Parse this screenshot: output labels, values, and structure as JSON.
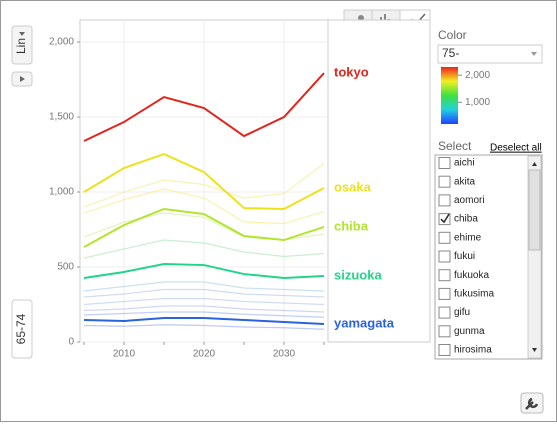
{
  "controls": {
    "scale": "Lin",
    "y_variable": "65-74"
  },
  "color_axis": {
    "label": "Color",
    "variable": "75-",
    "colorlim": [
      200,
      2300
    ],
    "ticks": [
      {
        "value": 2000,
        "label": "2,000"
      },
      {
        "value": 1000,
        "label": "1,000"
      }
    ]
  },
  "select": {
    "label": "Select",
    "action": "Deselect all",
    "items": [
      {
        "name": "aichi",
        "checked": false
      },
      {
        "name": "akita",
        "checked": false
      },
      {
        "name": "aomori",
        "checked": false
      },
      {
        "name": "chiba",
        "checked": true
      },
      {
        "name": "ehime",
        "checked": false
      },
      {
        "name": "fukui",
        "checked": false
      },
      {
        "name": "fukuoka",
        "checked": false
      },
      {
        "name": "fukusima",
        "checked": false
      },
      {
        "name": "gifu",
        "checked": false
      },
      {
        "name": "gunma",
        "checked": false
      },
      {
        "name": "hirosima",
        "checked": false
      }
    ]
  },
  "chart_data": {
    "type": "line",
    "x": [
      2005,
      2010,
      2015,
      2020,
      2025,
      2030,
      2035
    ],
    "xlim": [
      2004.5,
      2035.5
    ],
    "xticks": [
      2010,
      2020,
      2030
    ],
    "ylim": [
      0,
      2147
    ],
    "yticks": [
      0,
      500,
      {
        "value": 1000,
        "label": "1,000"
      },
      {
        "value": 1500,
        "label": "1,500"
      },
      {
        "value": 2000,
        "label": "2,000"
      }
    ],
    "grid": true,
    "series": [
      {
        "color": "#f5e86a",
        "values": [
          860,
          950,
          1020,
          960,
          800,
          790,
          870
        ]
      },
      {
        "color": "#f3ea78",
        "values": [
          900,
          1000,
          1080,
          1050,
          960,
          990,
          1190
        ]
      },
      {
        "color": "#cfe98a",
        "values": [
          700,
          800,
          860,
          830,
          700,
          680,
          720
        ]
      },
      {
        "color": "#9fe0b0",
        "values": [
          560,
          620,
          680,
          660,
          600,
          570,
          590
        ]
      },
      {
        "color": "#9ec7e8",
        "values": [
          340,
          370,
          400,
          400,
          360,
          350,
          340
        ]
      },
      {
        "color": "#a7bfe8",
        "values": [
          300,
          320,
          350,
          350,
          320,
          310,
          300
        ]
      },
      {
        "color": "#a9bdec",
        "values": [
          250,
          270,
          290,
          290,
          270,
          260,
          250
        ]
      },
      {
        "color": "#a7b5ec",
        "values": [
          210,
          220,
          240,
          240,
          220,
          210,
          200
        ]
      },
      {
        "color": "#8fa6ea",
        "values": [
          180,
          190,
          200,
          200,
          185,
          175,
          165
        ]
      },
      {
        "color": "#8a9ce8",
        "values": [
          110,
          105,
          115,
          110,
          100,
          95,
          85
        ]
      },
      {
        "name": "tokyo",
        "color": "#e0261d",
        "values": [
          1340,
          1467,
          1633,
          1560,
          1373,
          1500,
          1793
        ]
      },
      {
        "name": "osaka",
        "color": "#ece21c",
        "values": [
          1000,
          1160,
          1253,
          1133,
          893,
          887,
          1027
        ]
      },
      {
        "name": "chiba",
        "color": "#b2e52a",
        "values": [
          633,
          780,
          887,
          853,
          707,
          680,
          767
        ]
      },
      {
        "name": "sizuoka",
        "color": "#22d48a",
        "values": [
          427,
          467,
          520,
          513,
          453,
          427,
          440
        ]
      },
      {
        "name": "yamagata",
        "color": "#2b62de",
        "values": [
          147,
          140,
          160,
          160,
          147,
          133,
          120
        ]
      }
    ]
  }
}
